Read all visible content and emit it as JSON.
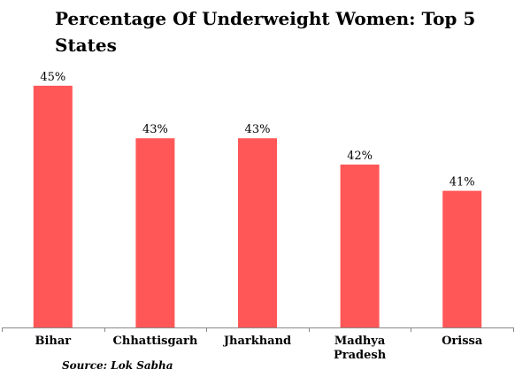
{
  "chart_data": {
    "type": "bar",
    "title": "Percentage Of Underweight Women: Top 5 States",
    "categories": [
      [
        "Bihar"
      ],
      [
        "Chhattisgarh"
      ],
      [
        "Jharkhand"
      ],
      [
        "Madhya",
        "Pradesh"
      ],
      [
        "Orissa"
      ]
    ],
    "values": [
      45,
      43,
      43,
      42,
      41
    ],
    "data_labels": [
      "45%",
      "43%",
      "43%",
      "42%",
      "41%"
    ],
    "ylim": [
      35.8,
      45.5
    ],
    "bar_color": "#ff5757",
    "axis_color": "#888888",
    "grid": false,
    "legend": "none"
  },
  "footer": {
    "source": "Source: Lok Sabha"
  }
}
